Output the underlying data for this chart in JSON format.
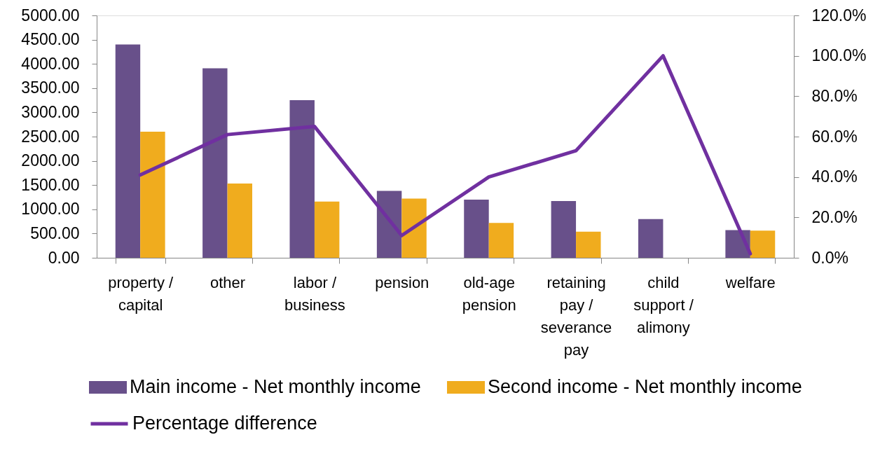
{
  "chart_data": {
    "type": "bar",
    "categories": [
      "property / capital",
      "other",
      "labor / business",
      "pension",
      "old-age pension",
      "retaining pay / severance pay",
      "child support / alimony",
      "welfare"
    ],
    "series": [
      {
        "name": "Main income - Net monthly income",
        "color": "#68508a",
        "values": [
          4400,
          3910,
          3250,
          1380,
          1200,
          1170,
          800,
          570
        ]
      },
      {
        "name": "Second income - Net monthly income",
        "color": "#f0ac1e",
        "values": [
          2600,
          1530,
          1160,
          1220,
          720,
          540,
          null,
          560
        ]
      },
      {
        "name": "Percentage difference",
        "type": "line",
        "axis": "y2",
        "color": "#7030a0",
        "values": [
          41,
          61,
          65,
          11,
          40,
          53,
          100,
          2
        ]
      }
    ],
    "ylim": [
      0,
      5000
    ],
    "yticks": [
      {
        "value": 0,
        "label": "0.00"
      },
      {
        "value": 500,
        "label": "500.00"
      },
      {
        "value": 1000,
        "label": "1000.00"
      },
      {
        "value": 1500,
        "label": "1500.00"
      },
      {
        "value": 2000,
        "label": "2000.00"
      },
      {
        "value": 2500,
        "label": "2500.00"
      },
      {
        "value": 3000,
        "label": "3000.00"
      },
      {
        "value": 3500,
        "label": "3500.00"
      },
      {
        "value": 4000,
        "label": "4000.00"
      },
      {
        "value": 4500,
        "label": "4500.00"
      },
      {
        "value": 5000,
        "label": "5000.00"
      }
    ],
    "y2lim": [
      0,
      120
    ],
    "y2ticks": [
      {
        "value": 0,
        "label": "0.0%"
      },
      {
        "value": 20,
        "label": "20.0%"
      },
      {
        "value": 40,
        "label": "40.0%"
      },
      {
        "value": 60,
        "label": "60.0%"
      },
      {
        "value": 80,
        "label": "80.0%"
      },
      {
        "value": 100,
        "label": "100.0%"
      },
      {
        "value": 120,
        "label": "120.0%"
      }
    ],
    "grid": false,
    "legend": "bottom",
    "marker": "none",
    "line_style": "solid"
  }
}
